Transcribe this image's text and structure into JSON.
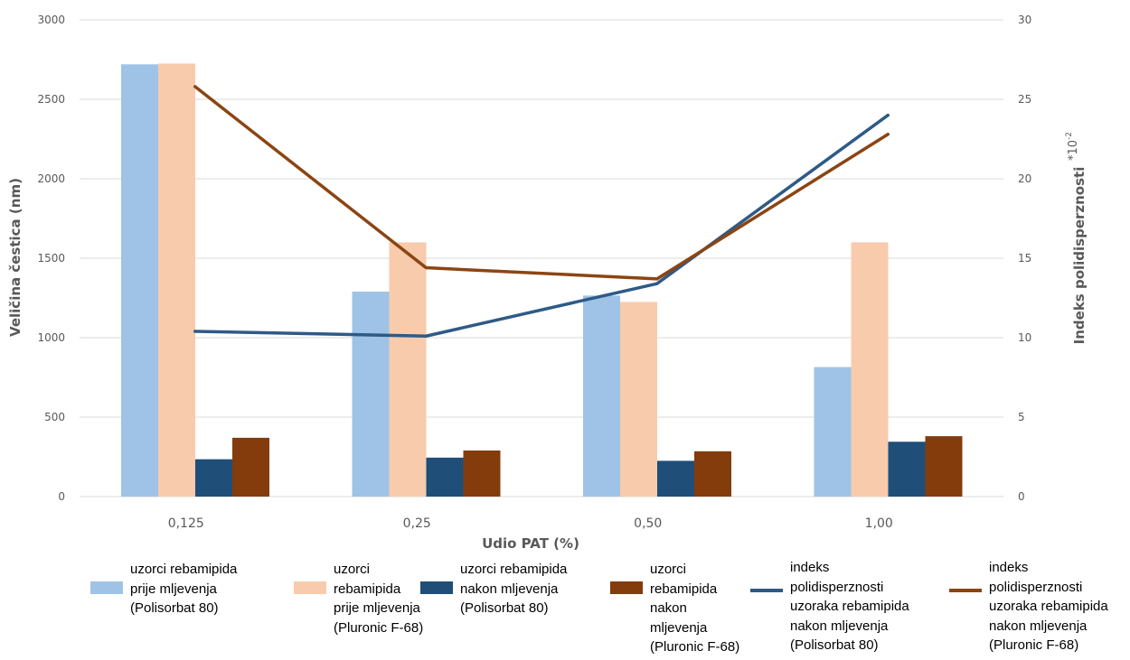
{
  "chart_data": {
    "type": "bar",
    "categories": [
      "0,125",
      "0,25",
      "0,50",
      "1,00"
    ],
    "series": [
      {
        "name": "uzorci rebamipida\nprije mljevenja\n(Polisorbat 80)",
        "kind": "bar",
        "axis": "left",
        "color": "#9fc3e6",
        "values": [
          2720,
          1290,
          1265,
          815
        ]
      },
      {
        "name": "uzorci rebamipida\nprije mljevenja\n(Pluronic F-68)",
        "kind": "bar",
        "axis": "left",
        "color": "#f8cbad",
        "values": [
          2725,
          1600,
          1225,
          1600
        ]
      },
      {
        "name": "uzorci rebamipida\nnakon mljevenja\n(Polisorbat 80)",
        "kind": "bar",
        "axis": "left",
        "color": "#1f4e79",
        "values": [
          235,
          245,
          225,
          345
        ]
      },
      {
        "name": "uzorci rebamipida\nnakon mljevenja\n(Pluronic F-68)",
        "kind": "bar",
        "axis": "left",
        "color": "#843c0c",
        "values": [
          370,
          290,
          285,
          380
        ]
      },
      {
        "name": "indeks\npolidisperznosti\nuzoraka rebamipida\nnakon mljevenja\n(Polisorbat 80)",
        "kind": "line",
        "axis": "right",
        "color": "#2e5a87",
        "values": [
          10.4,
          10.1,
          13.4,
          24.0
        ]
      },
      {
        "name": "indeks\npolidisperznosti\nuzoraka rebamipida\nnakon mljevenja\n(Pluronic F-68)",
        "kind": "line",
        "axis": "right",
        "color": "#8b4513",
        "values": [
          25.8,
          14.4,
          13.7,
          22.8
        ]
      }
    ],
    "xlabel": "Udio PAT (%)",
    "ylabel": "Veličina čestica (nm)",
    "y2label": "Indeks polidisperznosti",
    "y2label_suffix": "*10",
    "y2label_exponent": "-2",
    "ylim": [
      0,
      3000
    ],
    "y2lim": [
      0,
      30
    ],
    "yticks": [
      "0",
      "500",
      "1000",
      "1500",
      "2000",
      "2500",
      "3000"
    ],
    "y2ticks": [
      "0",
      "5",
      "10",
      "15",
      "20",
      "25",
      "30"
    ],
    "grid": true,
    "legend_position": "bottom"
  }
}
